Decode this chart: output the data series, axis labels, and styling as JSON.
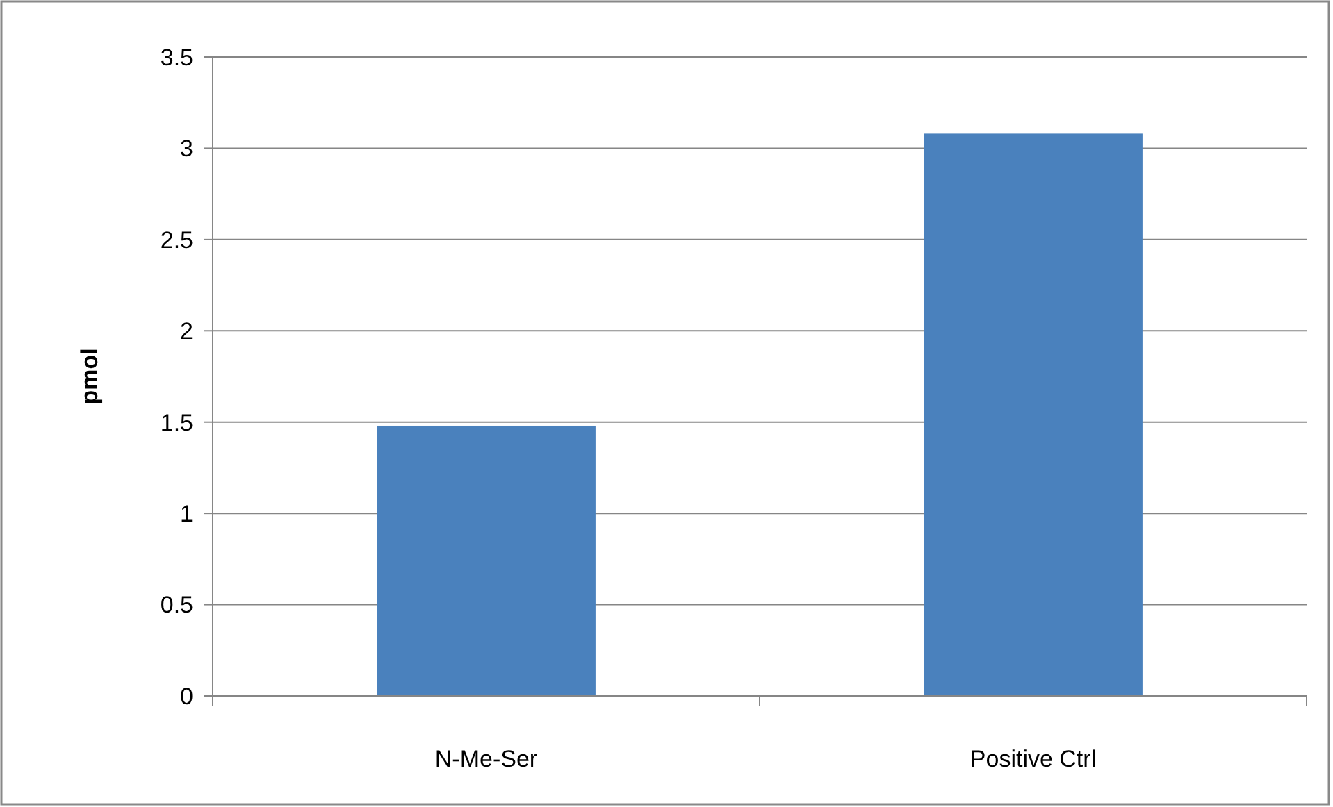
{
  "chart_data": {
    "type": "bar",
    "ylabel": "pmol",
    "categories": [
      "N-Me-Ser",
      "Positive Ctrl"
    ],
    "values": [
      1.48,
      3.08
    ],
    "color": "#4a81bd",
    "ylim": [
      0,
      3.5
    ],
    "yticks": [
      0,
      0.5,
      1,
      1.5,
      2,
      2.5,
      3,
      3.5
    ],
    "grid": "y"
  }
}
